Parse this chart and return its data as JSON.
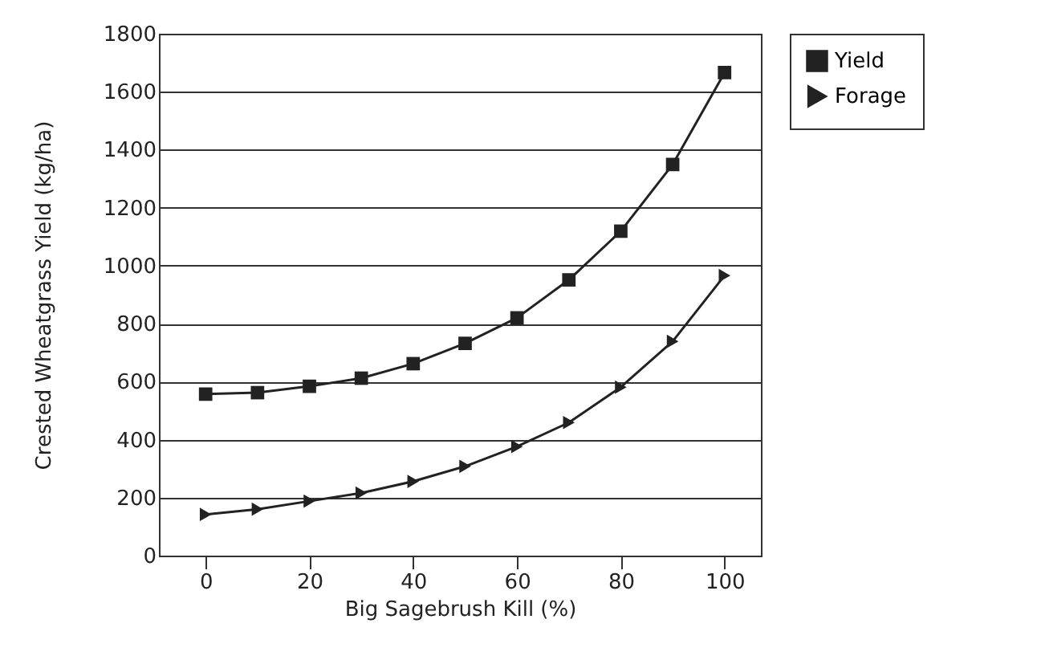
{
  "chart_data": {
    "type": "line",
    "xlabel": "Big Sagebrush Kill (%)",
    "ylabel": "Crested Wheatgrass Yield (kg/ha)",
    "x": [
      0,
      10,
      20,
      30,
      40,
      50,
      60,
      70,
      80,
      90,
      100
    ],
    "series": [
      {
        "name": "Yield",
        "color": "#222222",
        "marker": "square",
        "values": [
          557,
          562,
          584,
          612,
          662,
          732,
          820,
          951,
          1119,
          1349,
          1666
        ]
      },
      {
        "name": "Forage",
        "color": "#222222",
        "marker": "triangle",
        "values": [
          142,
          160,
          188,
          216,
          256,
          308,
          376,
          459,
          581,
          739,
          966
        ]
      }
    ],
    "xlim": [
      -9,
      107
    ],
    "xticks": [
      0,
      20,
      40,
      60,
      80,
      100
    ],
    "ylim": [
      0,
      1800
    ],
    "yticks": [
      0,
      200,
      400,
      600,
      800,
      1000,
      1200,
      1400,
      1600,
      1800
    ],
    "grid": "y",
    "legend": "top right",
    "line_style": "solid"
  }
}
